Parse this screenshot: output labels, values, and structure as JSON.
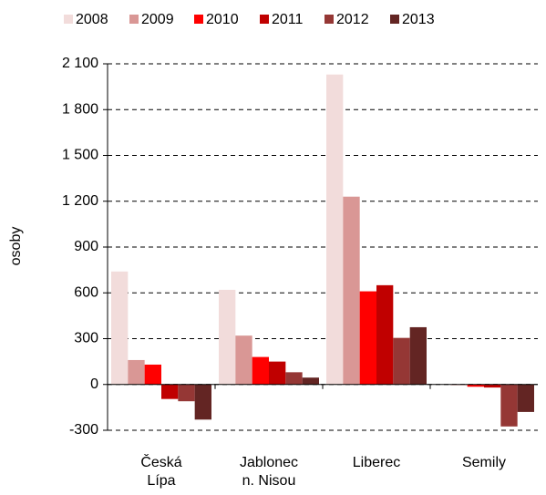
{
  "chart_data": {
    "type": "bar",
    "y_label": "osoby",
    "categories": [
      "Česká\nLípa",
      "Jablonec\nn. Nisou",
      "Liberec",
      "Semily"
    ],
    "series": [
      {
        "name": "2008",
        "color": "#f2dcdb",
        "values": [
          740,
          620,
          2030,
          0
        ]
      },
      {
        "name": "2009",
        "color": "#d99795",
        "values": [
          160,
          320,
          1230,
          -5
        ]
      },
      {
        "name": "2010",
        "color": "#ff0000",
        "values": [
          130,
          180,
          610,
          -15
        ]
      },
      {
        "name": "2011",
        "color": "#c00000",
        "values": [
          -95,
          150,
          650,
          -20
        ]
      },
      {
        "name": "2012",
        "color": "#953735",
        "values": [
          -110,
          80,
          305,
          -275
        ]
      },
      {
        "name": "2013",
        "color": "#632523",
        "values": [
          -230,
          45,
          375,
          -180
        ]
      }
    ],
    "ylim": [
      -300,
      2100
    ],
    "yticks": [
      -300,
      0,
      300,
      600,
      900,
      {
        "value": 1200,
        "label": "1 200"
      },
      {
        "value": 1500,
        "label": "1 500"
      },
      {
        "value": 1800,
        "label": "1 800"
      },
      {
        "value": 2100,
        "label": "2 100"
      }
    ],
    "grid": true,
    "legend": "top"
  }
}
